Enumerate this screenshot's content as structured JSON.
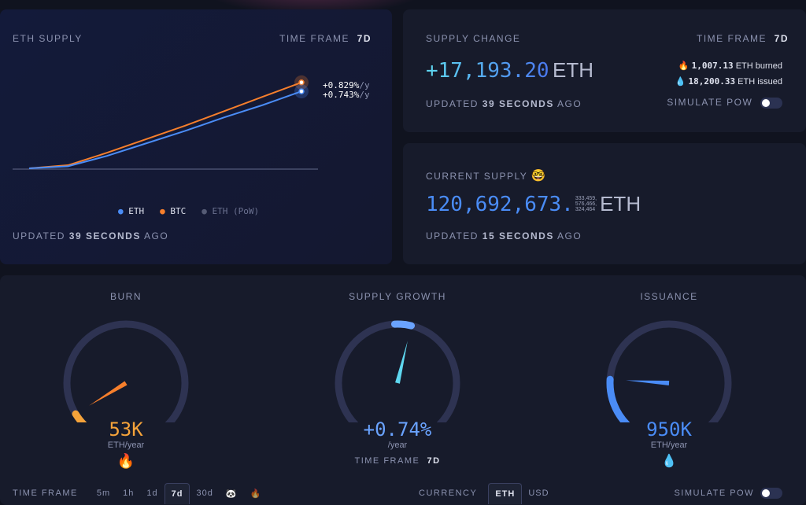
{
  "supply_card": {
    "title": "ETH SUPPLY",
    "timeframe_label": "TIME FRAME",
    "timeframe": "7d",
    "updated_prefix": "UPDATED",
    "updated_value": "39 SECONDS",
    "updated_suffix": "AGO",
    "legend": [
      {
        "label": "ETH",
        "color": "#4a8cf6"
      },
      {
        "label": "BTC",
        "color": "#f77f2c"
      },
      {
        "label": "ETH (PoW)",
        "color": "#555b75"
      }
    ],
    "end_labels": {
      "btc": "+0.829%",
      "btc_unit": "/y",
      "eth": "+0.743%",
      "eth_unit": "/y"
    }
  },
  "chart_data": {
    "type": "line",
    "title": "ETH SUPPLY",
    "xlabel": "",
    "ylabel": "",
    "x": [
      0,
      1,
      2,
      3,
      4,
      5,
      6,
      7
    ],
    "series": [
      {
        "name": "ETH",
        "values": [
          0,
          0.02,
          0.12,
          0.24,
          0.36,
          0.49,
          0.61,
          0.743
        ]
      },
      {
        "name": "BTC",
        "values": [
          0,
          0.03,
          0.15,
          0.28,
          0.41,
          0.55,
          0.69,
          0.829
        ]
      }
    ],
    "ylim": [
      0,
      0.9
    ]
  },
  "supply_change": {
    "title": "SUPPLY CHANGE",
    "timeframe_label": "TIME FRAME",
    "timeframe": "7d",
    "value": "+17,193.20",
    "unit": "ETH",
    "burned_value": "1,007.13",
    "burned_unit": "ETH burned",
    "issued_value": "18,200.33",
    "issued_unit": "ETH issued",
    "updated_prefix": "UPDATED",
    "updated_value": "39 SECONDS",
    "updated_suffix": "AGO",
    "simulate_label": "SIMULATE PoW"
  },
  "current_supply": {
    "title": "CURRENT SUPPLY",
    "value": "120,692,673.",
    "decimals": [
      "333,459,",
      "576,466,",
      "324,464"
    ],
    "unit": "ETH",
    "updated_prefix": "UPDATED",
    "updated_value": "15 SECONDS",
    "updated_suffix": "AGO"
  },
  "gauges": [
    {
      "title": "BURN",
      "value": "53K",
      "unit": "ETH/year",
      "color": "#f5a33a",
      "fraction": 0.05
    },
    {
      "title": "SUPPLY GROWTH",
      "value": "+0.74%",
      "unit": "/year",
      "color": "#6aa3ff",
      "fraction": 0.55,
      "timeframe_label": "TIME FRAME",
      "timeframe": "7d"
    },
    {
      "title": "ISSUANCE",
      "value": "950K",
      "unit": "ETH/year",
      "color": "#4a8cf6",
      "fraction": 0.18
    }
  ],
  "footer": {
    "timeframe_label": "TIME FRAME",
    "timeframes": [
      "5m",
      "1h",
      "1d",
      "7d",
      "30d"
    ],
    "selected_timeframe": "7d",
    "currency_label": "CURRENCY",
    "currencies": [
      "ETH",
      "USD"
    ],
    "selected_currency": "ETH",
    "simulate_label": "SIMULATE PoW"
  },
  "colors": {
    "eth": "#4a8cf6",
    "btc": "#f77f2c",
    "cyan": "#5fd8f0",
    "bg": "#10131f",
    "card": "#171b2b"
  }
}
